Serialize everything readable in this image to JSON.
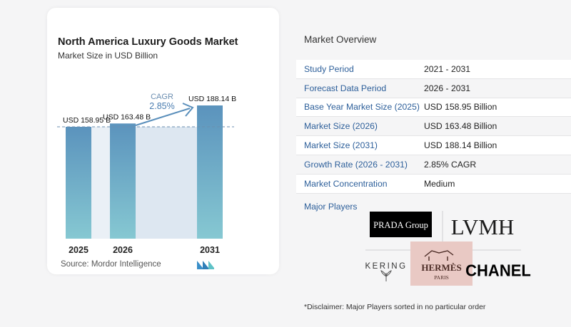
{
  "chart_panel": {
    "title": "North America Luxury Goods Market",
    "subtitle": "Market Size in USD Billion",
    "source": "Source:  Mordor Intelligence"
  },
  "chart_data": {
    "type": "bar",
    "categories": [
      "2025",
      "2026",
      "2031"
    ],
    "values": [
      158.95,
      163.48,
      188.14
    ],
    "value_labels": [
      "USD 158.95 B",
      "USD 163.48 B",
      "USD 188.14 B"
    ],
    "cagr_label": "CAGR",
    "cagr_value": "2.85%",
    "title": "North America Luxury Goods Market",
    "subtitle": "Market Size in USD Billion",
    "reference_line": "dashed at 2025 value",
    "colors": {
      "bar_top": "#5b93bd",
      "bar_bottom": "#86c8d2",
      "band": "#dde7f1",
      "arrow": "#5a8fbb"
    }
  },
  "overview": {
    "title": "Market Overview",
    "rows": [
      {
        "label": "Study Period",
        "value": "2021 - 2031"
      },
      {
        "label": "Forecast Data Period",
        "value": "2026 - 2031"
      },
      {
        "label": "Base Year Market Size (2025)",
        "value": "USD 158.95 Billion"
      },
      {
        "label": "Market Size (2026)",
        "value": "USD 163.48 Billion"
      },
      {
        "label": "Market Size (2031)",
        "value": "USD 188.14 Billion"
      },
      {
        "label": "Growth Rate (2026 - 2031)",
        "value": "2.85% CAGR"
      },
      {
        "label": "Market Concentration",
        "value": "Medium"
      }
    ],
    "major_players_title": "Major Players",
    "players": {
      "prada": "PRADA Group",
      "lvmh": "LVMH",
      "kering": "KERING",
      "hermes_top": "HERMÈS",
      "hermes_bottom": "PARIS",
      "chanel": "CHANEL"
    },
    "disclaimer": "*Disclaimer: Major Players sorted in no particular order"
  }
}
